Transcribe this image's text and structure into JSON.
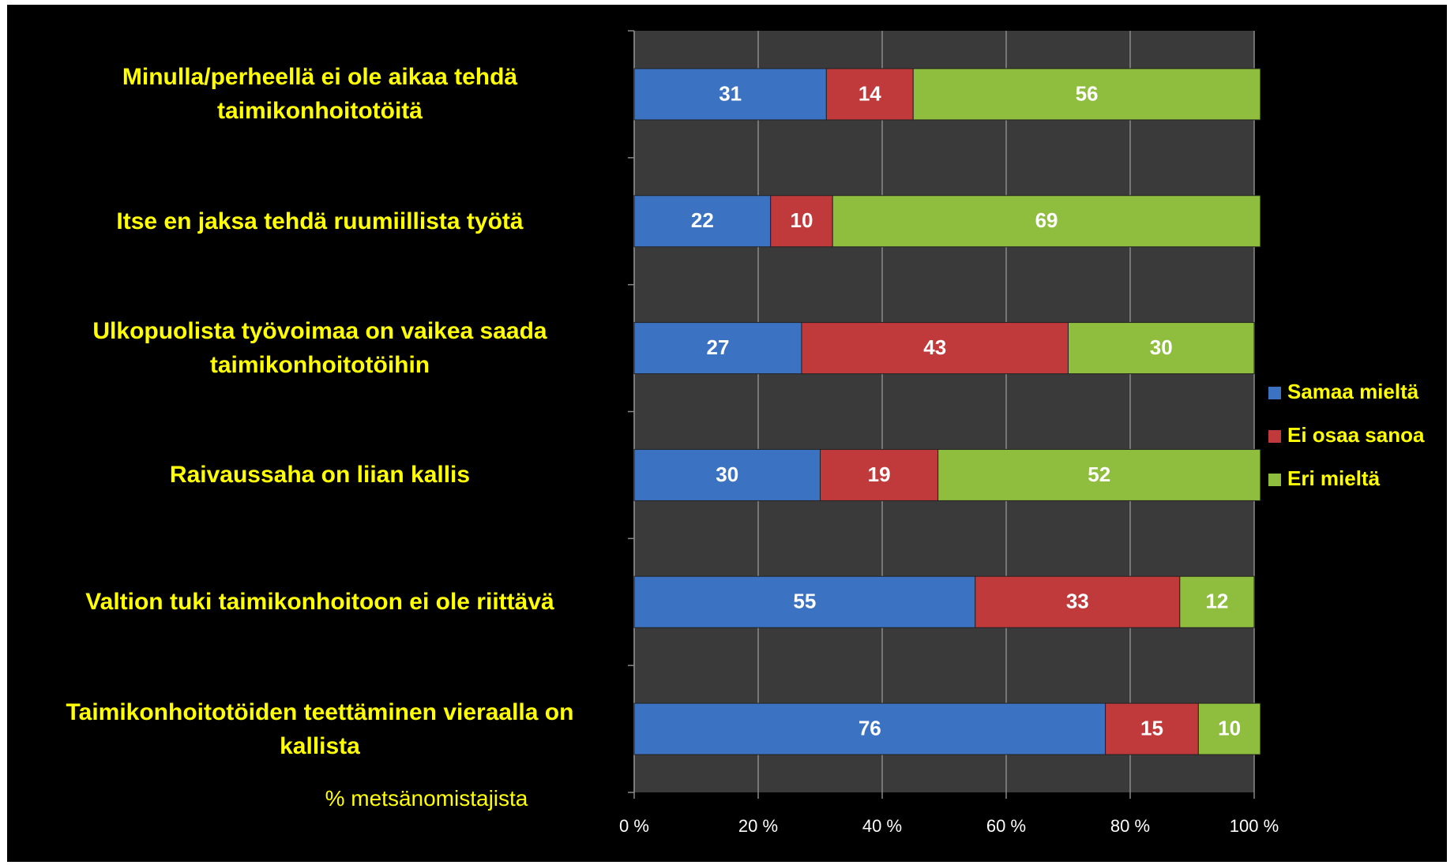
{
  "chart_data": {
    "type": "bar",
    "orientation": "horizontal",
    "stacked": true,
    "categories": [
      "Minulla/perheellä ei ole aikaa tehdä taimikonhoitotöitä",
      "Itse en jaksa tehdä ruumiillista työtä",
      "Ulkopuolista työvoimaa on vaikea saada taimikonhoitotöihin",
      "Raivaussaha on liian kallis",
      "Valtion tuki taimikonhoitoon ei ole riittävä",
      "Taimikonhoitotöiden teettäminen vieraalla on kallista"
    ],
    "series": [
      {
        "name": "Samaa mieltä",
        "color": "#3b72c2",
        "values": [
          31,
          22,
          27,
          30,
          55,
          76
        ]
      },
      {
        "name": "Ei osaa sanoa",
        "color": "#c0393b",
        "values": [
          14,
          10,
          43,
          19,
          33,
          15
        ]
      },
      {
        "name": "Eri mieltä",
        "color": "#8fbd3e",
        "values": [
          56,
          69,
          30,
          52,
          12,
          10
        ]
      }
    ],
    "xlabel": "% metsänomistajista",
    "xlim": [
      0,
      100
    ],
    "xticks": [
      {
        "value": 0,
        "label": "0 %"
      },
      {
        "value": 20,
        "label": "20 %"
      },
      {
        "value": 40,
        "label": "40 %"
      },
      {
        "value": 60,
        "label": "60 %"
      },
      {
        "value": 80,
        "label": "80 %"
      },
      {
        "value": 100,
        "label": "100 %"
      }
    ],
    "grid": true,
    "legend": "right"
  }
}
